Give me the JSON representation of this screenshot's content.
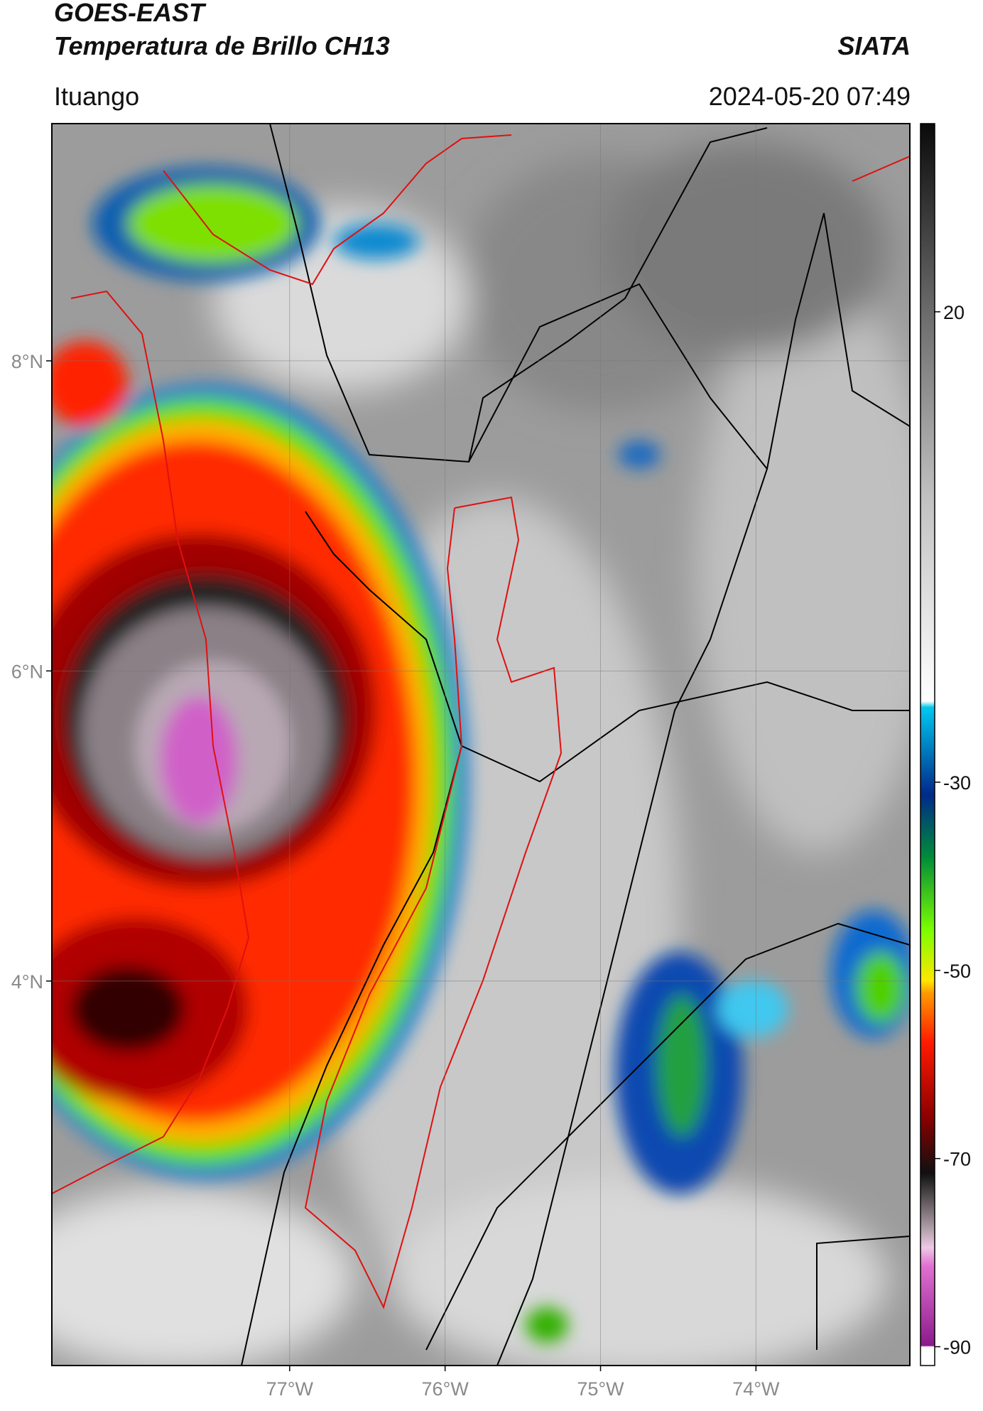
{
  "header": {
    "title": "GOES-EAST",
    "subtitle": "Temperatura de Brillo CH13",
    "source": "SIATA",
    "location": "Ituango",
    "timestamp": "2024-05-20 07:49"
  },
  "map": {
    "xlim": [
      -78.53,
      -73.01
    ],
    "ylim": [
      1.52,
      9.53
    ],
    "xticks": [
      {
        "value": -77,
        "label": "77°W"
      },
      {
        "value": -76,
        "label": "76°W"
      },
      {
        "value": -75,
        "label": "75°W"
      },
      {
        "value": -74,
        "label": "74°W"
      }
    ],
    "yticks": [
      {
        "value": 8,
        "label": "8°N"
      },
      {
        "value": 6,
        "label": "6°N"
      },
      {
        "value": 4,
        "label": "4°N"
      }
    ]
  },
  "colorbar": {
    "clim": [
      -92,
      40
    ],
    "ticks": [
      20,
      -30,
      -50,
      -70,
      -90
    ]
  }
}
